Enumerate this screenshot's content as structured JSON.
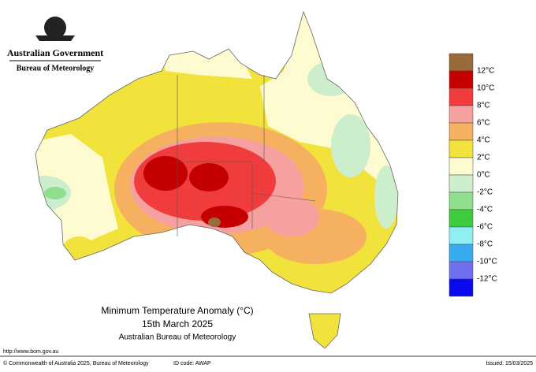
{
  "header": {
    "title": "Australian Government",
    "subtitle": "Bureau of Meteorology"
  },
  "map": {
    "title": "Minimum Temperature Anomaly (°C)",
    "date": "15th March 2025",
    "source": "Australian Bureau of Meteorology"
  },
  "legend": {
    "colors": [
      "#9b6a3a",
      "#c40000",
      "#f03c3c",
      "#f7a0a0",
      "#f5b060",
      "#f2e23c",
      "#fdfbcf",
      "#cdeecd",
      "#8ede8e",
      "#3ecc3e",
      "#8ef0f0",
      "#38aaee",
      "#7070ee",
      "#0a0aee"
    ],
    "labels": [
      "12°C",
      "10°C",
      "8°C",
      "6°C",
      "4°C",
      "2°C",
      "0°C",
      "-2°C",
      "-4°C",
      "-6°C",
      "-8°C",
      "-10°C",
      "-12°C"
    ]
  },
  "footer": {
    "url": "http://www.bom.gov.au",
    "copyright": "© Commonwealth of Australia 2025, Bureau of Meteorology",
    "id_code": "ID code: AWAP",
    "issued": "Issued: 15/03/2025"
  }
}
